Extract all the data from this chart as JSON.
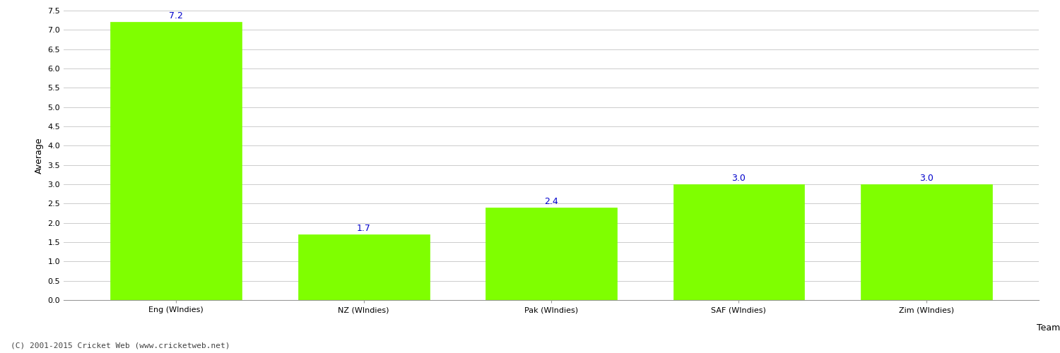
{
  "categories": [
    "Eng (WIndies)",
    "NZ (WIndies)",
    "Pak (WIndies)",
    "SAF (WIndies)",
    "Zim (WIndies)"
  ],
  "values": [
    7.2,
    1.7,
    2.4,
    3.0,
    3.0
  ],
  "bar_color": "#7fff00",
  "bar_edge_color": "#7fff00",
  "value_color": "#0000cc",
  "xlabel": "Team",
  "ylabel": "Average",
  "ylim": [
    0.0,
    7.5
  ],
  "yticks": [
    0.0,
    0.5,
    1.0,
    1.5,
    2.0,
    2.5,
    3.0,
    3.5,
    4.0,
    4.5,
    5.0,
    5.5,
    6.0,
    6.5,
    7.0,
    7.5
  ],
  "background_color": "#ffffff",
  "grid_color": "#cccccc",
  "footer_text": "(C) 2001-2015 Cricket Web (www.cricketweb.net)",
  "value_fontsize": 9,
  "axis_label_fontsize": 9,
  "tick_fontsize": 8,
  "footer_fontsize": 8
}
